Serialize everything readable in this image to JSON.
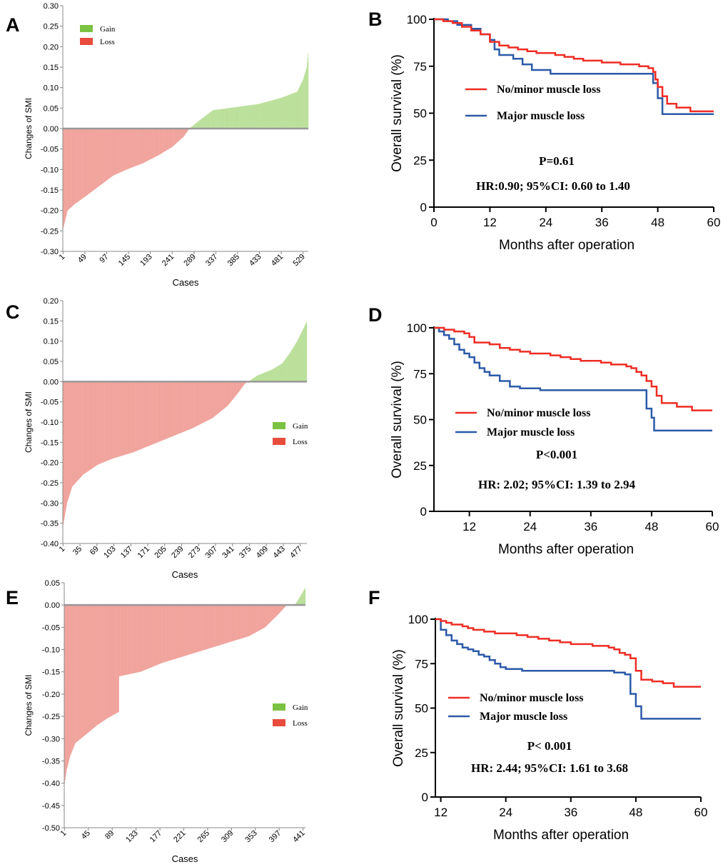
{
  "colors": {
    "gain": "#7cc242",
    "loss": "#e84c3d",
    "gain_bar": "#b9df98",
    "loss_bar": "#f0a19a",
    "km_red": "#ee2d24",
    "km_blue": "#2c5aa8",
    "axis": "#000000",
    "zero_line": "#999999"
  },
  "chart_data": [
    {
      "id": "A",
      "type": "bar",
      "panel_label": "A",
      "title": "",
      "xlabel": "Cases",
      "ylabel": "Changes of SMI",
      "n_cases": 540,
      "ylim": [
        -0.3,
        0.3
      ],
      "yticks": [
        "0.30",
        "0.25",
        "0.20",
        "0.15",
        "0.10",
        "0.05",
        "0.00",
        "-0.05",
        "-0.10",
        "-0.15",
        "-0.20",
        "-0.25",
        "-0.30"
      ],
      "xticks": [
        "1",
        "49",
        "97",
        "145",
        "193",
        "241",
        "289",
        "337",
        "385",
        "433",
        "481",
        "529"
      ],
      "sorted_change_keypoints": [
        [
          0,
          -0.245
        ],
        [
          10,
          -0.2
        ],
        [
          25,
          -0.185
        ],
        [
          50,
          -0.165
        ],
        [
          80,
          -0.14
        ],
        [
          110,
          -0.115
        ],
        [
          140,
          -0.1
        ],
        [
          175,
          -0.085
        ],
        [
          210,
          -0.065
        ],
        [
          240,
          -0.045
        ],
        [
          265,
          -0.02
        ],
        [
          278,
          0.0
        ],
        [
          300,
          0.02
        ],
        [
          330,
          0.045
        ],
        [
          365,
          0.05
        ],
        [
          430,
          0.06
        ],
        [
          480,
          0.075
        ],
        [
          515,
          0.09
        ],
        [
          528,
          0.12
        ],
        [
          536,
          0.15
        ],
        [
          540,
          0.195
        ]
      ],
      "legend": [
        {
          "name": "Gain",
          "color": "#7cc242"
        },
        {
          "name": "Loss",
          "color": "#e84c3d"
        }
      ],
      "legend_position": "top-left"
    },
    {
      "id": "B",
      "type": "line",
      "panel_label": "B",
      "xlabel": "Months after operation",
      "ylabel": "Overall survival (%)",
      "xlim": [
        0,
        60
      ],
      "ylim": [
        0,
        100
      ],
      "xticks": [
        "0",
        "12",
        "24",
        "36",
        "48",
        "60"
      ],
      "yticks": [
        "100",
        "75",
        "50",
        "25",
        "0"
      ],
      "series": [
        {
          "name": "No/minor muscle loss",
          "color": "#ee2d24",
          "steps": [
            [
              0,
              100
            ],
            [
              2,
              99
            ],
            [
              4,
              98
            ],
            [
              6,
              96
            ],
            [
              8,
              94
            ],
            [
              10,
              92
            ],
            [
              12,
              88
            ],
            [
              14,
              86
            ],
            [
              16,
              85
            ],
            [
              18,
              84
            ],
            [
              20,
              83
            ],
            [
              22,
              82
            ],
            [
              26,
              81
            ],
            [
              28,
              80
            ],
            [
              30,
              79
            ],
            [
              32,
              78
            ],
            [
              34,
              78
            ],
            [
              36,
              77
            ],
            [
              40,
              76
            ],
            [
              44,
              75
            ],
            [
              46,
              74
            ],
            [
              47,
              72
            ],
            [
              47.5,
              68
            ],
            [
              48,
              64
            ],
            [
              49,
              59
            ],
            [
              50,
              55
            ],
            [
              52,
              53
            ],
            [
              55,
              51
            ],
            [
              60,
              51
            ]
          ]
        },
        {
          "name": "Major muscle loss",
          "color": "#2c5aa8",
          "steps": [
            [
              0,
              100
            ],
            [
              3,
              99
            ],
            [
              5,
              97
            ],
            [
              8,
              95
            ],
            [
              10,
              92
            ],
            [
              12,
              89
            ],
            [
              13,
              84
            ],
            [
              14,
              81
            ],
            [
              17,
              79
            ],
            [
              19,
              76
            ],
            [
              21,
              73
            ],
            [
              25,
              71
            ],
            [
              35,
              71
            ],
            [
              46,
              71
            ],
            [
              47,
              66
            ],
            [
              48,
              58
            ],
            [
              49,
              49.5
            ],
            [
              60,
              49.5
            ]
          ]
        }
      ],
      "annotations": [
        "P=0.61",
        "HR:0.90; 95%CI: 0.60 to 1.40"
      ]
    },
    {
      "id": "C",
      "type": "bar",
      "panel_label": "C",
      "xlabel": "Cases",
      "ylabel": "Changes of SMI",
      "n_cases": 490,
      "ylim": [
        -0.4,
        0.2
      ],
      "yticks": [
        "0.20",
        "0.15",
        "0.10",
        "0.05",
        "0.00",
        "-0.05",
        "-0.10",
        "-0.15",
        "-0.20",
        "-0.25",
        "-0.30",
        "-0.35",
        "-0.40"
      ],
      "xticks": [
        "1",
        "35",
        "69",
        "103",
        "137",
        "171",
        "205",
        "239",
        "273",
        "307",
        "341",
        "375",
        "409",
        "443",
        "477"
      ],
      "sorted_change_keypoints": [
        [
          0,
          -0.355
        ],
        [
          8,
          -0.3
        ],
        [
          18,
          -0.26
        ],
        [
          40,
          -0.23
        ],
        [
          70,
          -0.205
        ],
        [
          100,
          -0.19
        ],
        [
          140,
          -0.175
        ],
        [
          180,
          -0.155
        ],
        [
          220,
          -0.135
        ],
        [
          260,
          -0.115
        ],
        [
          300,
          -0.09
        ],
        [
          330,
          -0.06
        ],
        [
          350,
          -0.03
        ],
        [
          365,
          -0.005
        ],
        [
          372,
          0.0
        ],
        [
          390,
          0.015
        ],
        [
          420,
          0.03
        ],
        [
          440,
          0.045
        ],
        [
          455,
          0.07
        ],
        [
          470,
          0.1
        ],
        [
          490,
          0.15
        ]
      ],
      "legend": [
        {
          "name": "Gain",
          "color": "#7cc242"
        },
        {
          "name": "Loss",
          "color": "#e84c3d"
        }
      ],
      "legend_position": "center-right"
    },
    {
      "id": "D",
      "type": "line",
      "panel_label": "D",
      "xlabel": "Months after operation",
      "ylabel": "Overall survival (%)",
      "xlim": [
        5,
        60
      ],
      "ylim": [
        0,
        100
      ],
      "xticks": [
        "12",
        "24",
        "36",
        "48",
        "60"
      ],
      "yticks": [
        "100",
        "75",
        "50",
        "25",
        "0"
      ],
      "series": [
        {
          "name": "No/minor muscle loss",
          "color": "#ee2d24",
          "steps": [
            [
              5,
              100
            ],
            [
              7,
              99
            ],
            [
              9,
              98
            ],
            [
              11,
              97
            ],
            [
              12,
              95
            ],
            [
              13,
              92
            ],
            [
              16,
              91
            ],
            [
              18,
              89
            ],
            [
              20,
              88
            ],
            [
              22,
              87
            ],
            [
              24,
              86
            ],
            [
              28,
              85
            ],
            [
              30,
              84
            ],
            [
              32,
              83
            ],
            [
              34,
              82
            ],
            [
              38,
              81
            ],
            [
              40,
              80
            ],
            [
              43,
              79
            ],
            [
              44,
              78
            ],
            [
              45,
              76
            ],
            [
              46,
              74
            ],
            [
              47,
              71
            ],
            [
              48,
              68
            ],
            [
              49,
              63
            ],
            [
              50,
              59
            ],
            [
              53,
              57
            ],
            [
              56,
              55
            ],
            [
              60,
              55
            ]
          ]
        },
        {
          "name": "Major muscle loss",
          "color": "#2c5aa8",
          "steps": [
            [
              5,
              100
            ],
            [
              6,
              98
            ],
            [
              7,
              96
            ],
            [
              8,
              94
            ],
            [
              9,
              91
            ],
            [
              10,
              88
            ],
            [
              11,
              86
            ],
            [
              12,
              84
            ],
            [
              13,
              81
            ],
            [
              14,
              78
            ],
            [
              15,
              76
            ],
            [
              16,
              74
            ],
            [
              18,
              71
            ],
            [
              20,
              68
            ],
            [
              22,
              67
            ],
            [
              26,
              66
            ],
            [
              46,
              66
            ],
            [
              47,
              56
            ],
            [
              48,
              51
            ],
            [
              48.5,
              44
            ],
            [
              60,
              44
            ]
          ]
        }
      ],
      "annotations": [
        "P<0.001",
        "HR: 2.02; 95%CI: 1.39 to 2.94"
      ]
    },
    {
      "id": "E",
      "type": "bar",
      "panel_label": "E",
      "xlabel": "Cases",
      "ylabel": "Changes of SMI",
      "n_cases": 445,
      "ylim": [
        -0.5,
        0.05
      ],
      "yticks": [
        "0.05",
        "0.00",
        "-0.05",
        "-0.10",
        "-0.15",
        "-0.20",
        "-0.25",
        "-0.30",
        "-0.35",
        "-0.40",
        "-0.45",
        "-0.50"
      ],
      "xticks": [
        "1",
        "45",
        "89",
        "133",
        "177",
        "221",
        "265",
        "309",
        "353",
        "397",
        "441"
      ],
      "sorted_change_keypoints": [
        [
          0,
          -0.4
        ],
        [
          4,
          -0.37
        ],
        [
          10,
          -0.34
        ],
        [
          20,
          -0.31
        ],
        [
          40,
          -0.29
        ],
        [
          60,
          -0.27
        ],
        [
          78,
          -0.255
        ],
        [
          100,
          -0.24
        ],
        [
          101,
          -0.16
        ],
        [
          140,
          -0.15
        ],
        [
          180,
          -0.13
        ],
        [
          220,
          -0.115
        ],
        [
          260,
          -0.1
        ],
        [
          300,
          -0.085
        ],
        [
          340,
          -0.07
        ],
        [
          370,
          -0.05
        ],
        [
          395,
          -0.02
        ],
        [
          410,
          0.0
        ],
        [
          425,
          0.0
        ],
        [
          435,
          0.02
        ],
        [
          445,
          0.04
        ]
      ],
      "legend": [
        {
          "name": "Gain",
          "color": "#7cc242"
        },
        {
          "name": "Loss",
          "color": "#e84c3d"
        }
      ],
      "legend_position": "bottom-right"
    },
    {
      "id": "F",
      "type": "line",
      "panel_label": "F",
      "xlabel": "Months after operation",
      "ylabel": "Overall survival (%)",
      "xlim": [
        11,
        60
      ],
      "ylim": [
        0,
        100
      ],
      "xticks": [
        "12",
        "24",
        "36",
        "48",
        "60"
      ],
      "yticks": [
        "100",
        "75",
        "50",
        "25",
        "0"
      ],
      "series": [
        {
          "name": "No/minor muscle loss",
          "color": "#ee2d24",
          "steps": [
            [
              11,
              100
            ],
            [
              12,
              99
            ],
            [
              13,
              98
            ],
            [
              14,
              97
            ],
            [
              16,
              96
            ],
            [
              17,
              95
            ],
            [
              18,
              94
            ],
            [
              20,
              93
            ],
            [
              22,
              92
            ],
            [
              26,
              91
            ],
            [
              28,
              90
            ],
            [
              30,
              89
            ],
            [
              32,
              88
            ],
            [
              34,
              87
            ],
            [
              36,
              86
            ],
            [
              40,
              85
            ],
            [
              43,
              84
            ],
            [
              44,
              83
            ],
            [
              45,
              81
            ],
            [
              46,
              80
            ],
            [
              47,
              78
            ],
            [
              48,
              71
            ],
            [
              49,
              66
            ],
            [
              51,
              65
            ],
            [
              53,
              64
            ],
            [
              55,
              62
            ],
            [
              60,
              62
            ]
          ]
        },
        {
          "name": "Major muscle loss",
          "color": "#2c5aa8",
          "steps": [
            [
              11,
              100
            ],
            [
              12,
              94
            ],
            [
              13,
              91
            ],
            [
              14,
              88
            ],
            [
              15,
              86
            ],
            [
              16,
              84
            ],
            [
              17,
              83
            ],
            [
              18,
              82
            ],
            [
              19,
              80
            ],
            [
              20,
              79
            ],
            [
              21,
              77
            ],
            [
              22,
              75
            ],
            [
              23,
              73
            ],
            [
              24,
              72
            ],
            [
              27,
              71
            ],
            [
              35,
              71
            ],
            [
              44,
              70
            ],
            [
              46,
              69
            ],
            [
              47,
              58
            ],
            [
              48,
              51
            ],
            [
              49,
              44
            ],
            [
              60,
              44
            ]
          ]
        }
      ],
      "annotations": [
        "P< 0.001",
        "HR: 2.44; 95%CI: 1.61 to 3.68"
      ]
    }
  ]
}
